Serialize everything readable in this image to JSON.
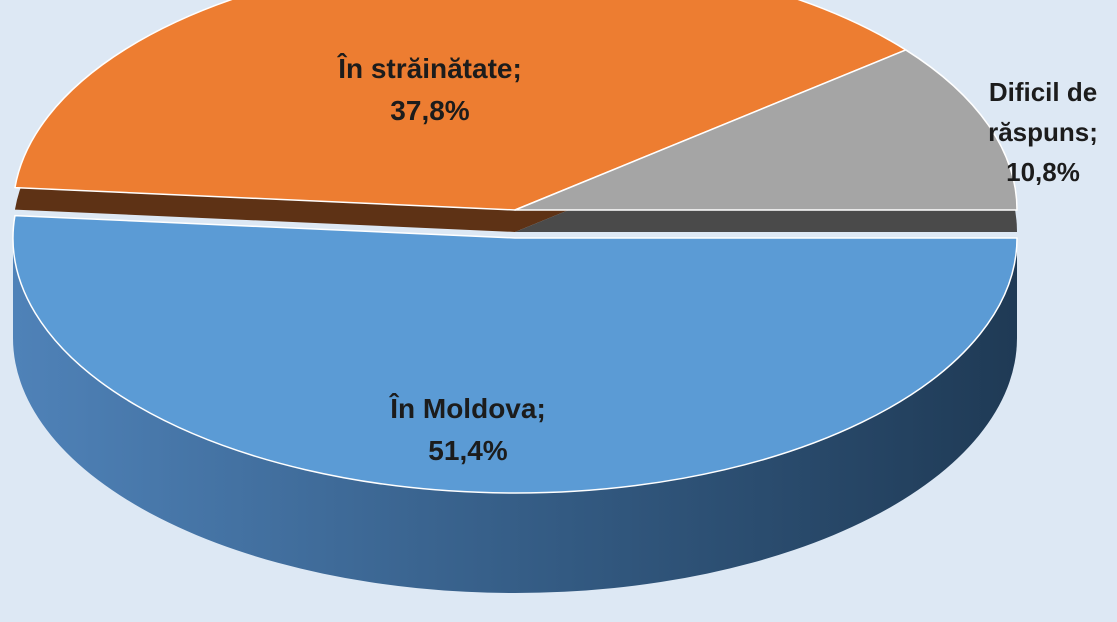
{
  "chart_data": {
    "type": "pie",
    "categories": [
      "În Moldova;",
      "În străinătate;",
      "Dificil de răspuns;"
    ],
    "values": [
      51.4,
      37.8,
      10.8
    ],
    "value_labels": [
      "51,4%",
      "37,8%",
      "10,8%"
    ],
    "colors": [
      "#5b9bd5",
      "#ed7d31",
      "#a5a5a5"
    ]
  }
}
